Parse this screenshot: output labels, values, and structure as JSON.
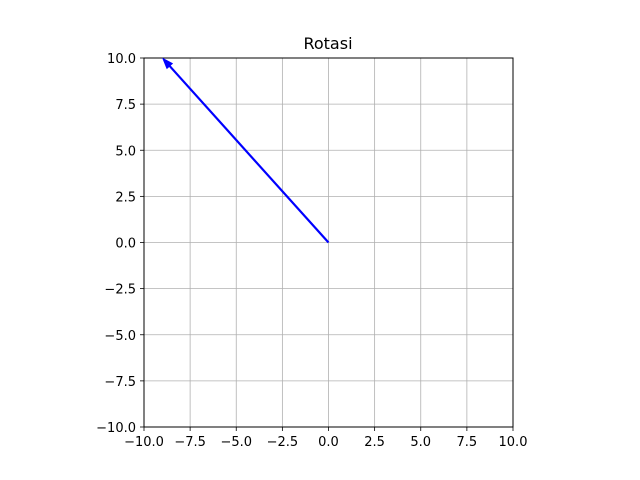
{
  "chart_data": {
    "type": "vector",
    "title": "Rotasi",
    "xlabel": "",
    "ylabel": "",
    "xlim": [
      -10,
      10
    ],
    "ylim": [
      -10,
      10
    ],
    "xticks": [
      -10,
      -7.5,
      -5,
      -2.5,
      0,
      2.5,
      5,
      7.5,
      10
    ],
    "yticks": [
      -10,
      -7.5,
      -5,
      -2.5,
      0,
      2.5,
      5,
      7.5,
      10
    ],
    "xtick_labels": [
      "−10.0",
      "−7.5",
      "−5.0",
      "−2.5",
      "0.0",
      "2.5",
      "5.0",
      "7.5",
      "10.0"
    ],
    "ytick_labels": [
      "−10.0",
      "−7.5",
      "−5.0",
      "−2.5",
      "0.0",
      "2.5",
      "5.0",
      "7.5",
      "10.0"
    ],
    "grid": true,
    "vectors": [
      {
        "start": [
          0,
          0
        ],
        "end": [
          -9,
          10
        ],
        "color": "#0000ff"
      }
    ],
    "colors": {
      "grid": "#b0b0b0",
      "axes": "#000000",
      "vector": "#0000ff"
    }
  }
}
